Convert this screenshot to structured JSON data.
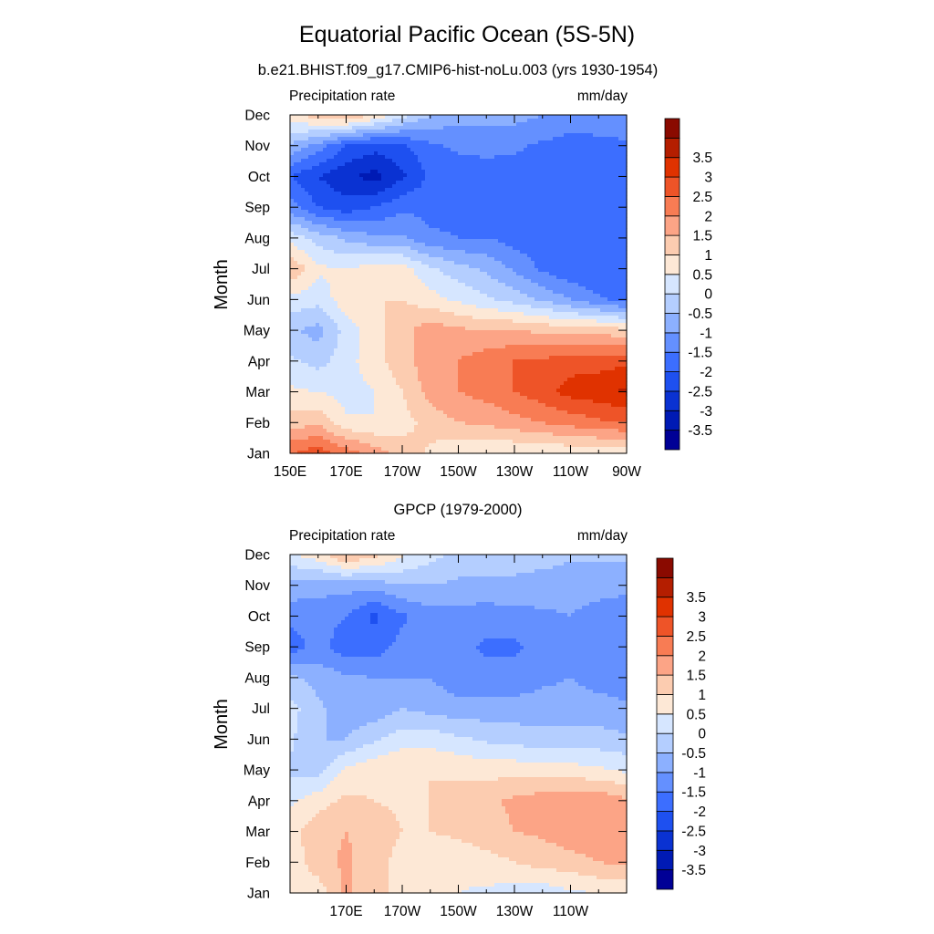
{
  "figure": {
    "title": "Equatorial Pacific Ocean (5S-5N)"
  },
  "palette": [
    "#000096",
    "#001ab4",
    "#0a32d2",
    "#1e50f0",
    "#3c6eff",
    "#6490ff",
    "#8cb0ff",
    "#b4ceff",
    "#d6e6ff",
    "#fde8d6",
    "#fcccb0",
    "#fca486",
    "#f87c54",
    "#ee5428",
    "#e03200",
    "#b41e00",
    "#8a0a00"
  ],
  "colorbar": {
    "labels": [
      "-3.5",
      "-3",
      "-2.5",
      "-2",
      "-1.5",
      "-1",
      "-0.5",
      "0",
      "0.5",
      "1",
      "1.5",
      "2",
      "2.5",
      "3",
      "3.5"
    ]
  },
  "chart_data": [
    {
      "type": "heatmap",
      "title": "b.e21.BHIST.f09_g17.CMIP6-hist-noLu.003 (yrs 1930-1954)",
      "left_string": "Precipitation rate",
      "right_string": "mm/day",
      "ylabel": "Month",
      "x_tick_labels": [
        "150E",
        "170E",
        "170W",
        "150W",
        "130W",
        "110W",
        "90W"
      ],
      "y_tick_labels": [
        "Jan",
        "Feb",
        "Mar",
        "Apr",
        "May",
        "Jun",
        "Jul",
        "Aug",
        "Sep",
        "Oct",
        "Nov",
        "Dec"
      ],
      "x_lon_range_deg_east": [
        150,
        270
      ],
      "x_grid_lon_deg_east": [
        150,
        160,
        170,
        180,
        190,
        200,
        210,
        220,
        230,
        240,
        250,
        260,
        270
      ],
      "y_grid_month": [
        1,
        2,
        3,
        4,
        5,
        6,
        7,
        8,
        9,
        10,
        11,
        12
      ],
      "contour_levels": [
        -3.5,
        -3,
        -2.5,
        -2,
        -1.5,
        -1,
        -0.5,
        0,
        0.5,
        1,
        1.5,
        2,
        2.5,
        3,
        3.5
      ],
      "z_mm_per_day": [
        [
          2.5,
          2.8,
          2.3,
          1.8,
          1.3,
          0.9,
          0.6,
          0.5,
          0.5,
          0.5,
          0.6,
          0.6,
          0.7
        ],
        [
          1.2,
          1.4,
          0.6,
          0.5,
          0.8,
          1.2,
          1.5,
          1.6,
          1.8,
          2.0,
          2.2,
          2.4,
          2.5
        ],
        [
          0.6,
          0.5,
          0.3,
          0.5,
          1.0,
          1.7,
          2.0,
          2.2,
          2.5,
          2.8,
          3.2,
          3.3,
          3.6
        ],
        [
          0.1,
          -0.2,
          0.3,
          0.8,
          1.3,
          1.8,
          2.0,
          2.3,
          2.5,
          2.6,
          2.8,
          2.8,
          2.9
        ],
        [
          -0.4,
          -0.7,
          0.2,
          0.8,
          1.3,
          1.8,
          1.6,
          1.5,
          1.5,
          1.4,
          1.3,
          1.3,
          1.1
        ],
        [
          0.3,
          0.2,
          0.8,
          1.0,
          1.0,
          0.7,
          0.4,
          0.1,
          -0.2,
          -0.6,
          -1.0,
          -1.4,
          -1.7
        ],
        [
          1.5,
          0.6,
          0.5,
          0.7,
          0.7,
          0.1,
          -0.3,
          -0.6,
          -1.1,
          -1.6,
          -1.9,
          -2.0,
          -1.9
        ],
        [
          0.3,
          -0.2,
          -0.6,
          -0.9,
          -0.9,
          -1.4,
          -1.5,
          -1.5,
          -1.7,
          -1.8,
          -1.9,
          -1.9,
          -1.9
        ],
        [
          -1.3,
          -2.0,
          -2.3,
          -2.0,
          -1.6,
          -1.7,
          -1.7,
          -1.7,
          -1.7,
          -1.8,
          -1.9,
          -1.8,
          -1.8
        ],
        [
          -2.0,
          -2.5,
          -2.9,
          -3.2,
          -2.6,
          -1.9,
          -1.8,
          -1.8,
          -1.8,
          -1.8,
          -1.9,
          -1.8,
          -1.8
        ],
        [
          -0.6,
          -1.2,
          -2.0,
          -2.3,
          -2.1,
          -1.6,
          -1.4,
          -1.3,
          -1.4,
          -1.6,
          -1.7,
          -1.6,
          -1.6
        ],
        [
          0.8,
          1.3,
          1.6,
          1.0,
          0.2,
          -0.5,
          -0.8,
          -0.8,
          -0.8,
          -1.0,
          -1.2,
          -1.3,
          -1.1
        ]
      ]
    },
    {
      "type": "heatmap",
      "title": "GPCP (1979-2000)",
      "left_string": "Precipitation rate",
      "right_string": "mm/day",
      "ylabel": "Month",
      "x_tick_labels": [
        "170E",
        "170W",
        "150W",
        "130W",
        "110W"
      ],
      "y_tick_labels": [
        "Jan",
        "Feb",
        "Mar",
        "Apr",
        "May",
        "Jun",
        "Jul",
        "Aug",
        "Sep",
        "Oct",
        "Nov",
        "Dec"
      ],
      "x_lon_range_deg_east": [
        150,
        270
      ],
      "x_grid_lon_deg_east": [
        150,
        160,
        170,
        180,
        190,
        200,
        210,
        220,
        230,
        240,
        250,
        260,
        270
      ],
      "y_grid_month": [
        1,
        2,
        3,
        4,
        5,
        6,
        7,
        8,
        9,
        10,
        11,
        12
      ],
      "contour_levels": [
        -3.5,
        -3,
        -2.5,
        -2,
        -1.5,
        -1,
        -0.5,
        0,
        0.5,
        1,
        1.5,
        2,
        2.5,
        3,
        3.5
      ],
      "z_mm_per_day": [
        [
          0.6,
          0.7,
          1.6,
          1.2,
          0.8,
          0.6,
          0.5,
          0.4,
          0.3,
          0.2,
          0.4,
          0.5,
          0.6
        ],
        [
          0.7,
          1.3,
          1.6,
          1.2,
          0.8,
          0.7,
          0.7,
          0.8,
          1.0,
          1.2,
          1.3,
          1.5,
          1.6
        ],
        [
          0.8,
          1.3,
          1.5,
          1.3,
          1.0,
          1.0,
          1.1,
          1.3,
          1.5,
          1.6,
          1.8,
          1.9,
          1.7
        ],
        [
          0.4,
          0.8,
          1.1,
          1.0,
          0.9,
          1.0,
          1.2,
          1.4,
          1.6,
          1.8,
          1.8,
          1.9,
          1.6
        ],
        [
          -0.1,
          -0.2,
          0.6,
          0.9,
          1.0,
          1.0,
          0.9,
          0.8,
          0.8,
          0.7,
          0.7,
          0.6,
          0.4
        ],
        [
          0.1,
          -0.5,
          -0.5,
          -0.1,
          0.3,
          0.3,
          0.1,
          -0.1,
          -0.2,
          -0.3,
          -0.3,
          -0.3,
          -0.4
        ],
        [
          0.2,
          -0.4,
          -0.8,
          -0.8,
          -0.5,
          -0.7,
          -0.8,
          -0.8,
          -0.8,
          -0.8,
          -0.8,
          -0.8,
          -0.9
        ],
        [
          -0.4,
          -0.7,
          -0.9,
          -1.0,
          -1.0,
          -1.0,
          -1.3,
          -1.3,
          -1.3,
          -1.1,
          -1.0,
          -1.2,
          -1.3
        ],
        [
          -1.8,
          -1.3,
          -1.8,
          -1.8,
          -1.3,
          -1.0,
          -1.3,
          -1.6,
          -1.6,
          -1.3,
          -1.0,
          -1.4,
          -1.5
        ],
        [
          -1.3,
          -1.3,
          -1.5,
          -2.1,
          -1.6,
          -1.2,
          -1.2,
          -1.3,
          -1.2,
          -1.1,
          -1.0,
          -1.2,
          -1.4
        ],
        [
          -0.7,
          -0.8,
          -0.8,
          -0.8,
          -0.5,
          -0.5,
          -0.6,
          -0.6,
          -0.6,
          -0.7,
          -0.8,
          -0.8,
          -0.8
        ],
        [
          0.4,
          0.8,
          1.6,
          1.2,
          0.6,
          0.2,
          -0.2,
          -0.3,
          -0.3,
          -0.3,
          -0.4,
          -0.4,
          -0.4
        ]
      ]
    }
  ]
}
